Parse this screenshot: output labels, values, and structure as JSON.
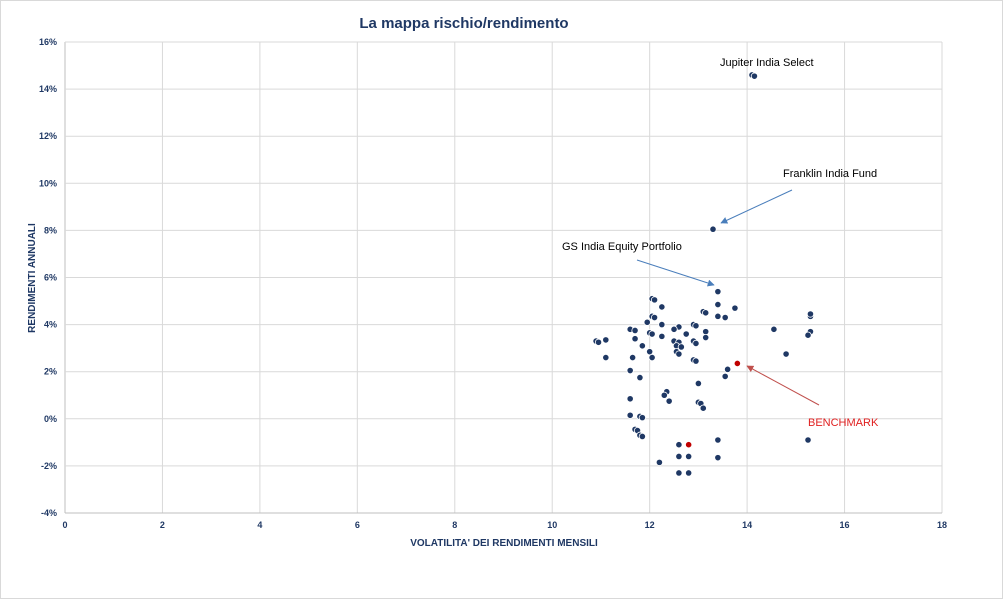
{
  "chart_data": {
    "type": "scatter",
    "title": "La mappa rischio/rendimento",
    "xlabel": "VOLATILITA' DEI RENDIMENTI MENSILI",
    "ylabel": "RENDIMENTI ANNUALI",
    "xlim": [
      0,
      18
    ],
    "ylim": [
      -4,
      16
    ],
    "x_ticks": [
      "0",
      "2",
      "4",
      "6",
      "8",
      "10",
      "12",
      "14",
      "16",
      "18"
    ],
    "y_ticks": [
      "-4%",
      "-2%",
      "0%",
      "2%",
      "4%",
      "6%",
      "8%",
      "10%",
      "12%",
      "14%",
      "16%"
    ],
    "grid": true,
    "colors": {
      "points": "#1f3864",
      "highlight": "#c00000",
      "arrow_blue": "#4a7ebb",
      "arrow_red": "#c0504d"
    },
    "points": [
      {
        "x": 14.1,
        "y": 14.6
      },
      {
        "x": 14.15,
        "y": 14.55
      },
      {
        "x": 13.3,
        "y": 8.05
      },
      {
        "x": 13.4,
        "y": 5.4
      },
      {
        "x": 12.05,
        "y": 5.1
      },
      {
        "x": 12.1,
        "y": 5.05
      },
      {
        "x": 12.25,
        "y": 4.75
      },
      {
        "x": 13.4,
        "y": 4.85
      },
      {
        "x": 13.75,
        "y": 4.7
      },
      {
        "x": 13.1,
        "y": 4.55
      },
      {
        "x": 13.15,
        "y": 4.5
      },
      {
        "x": 12.05,
        "y": 4.35
      },
      {
        "x": 12.1,
        "y": 4.3
      },
      {
        "x": 13.4,
        "y": 4.35
      },
      {
        "x": 13.55,
        "y": 4.3
      },
      {
        "x": 15.3,
        "y": 4.35
      },
      {
        "x": 15.3,
        "y": 4.45
      },
      {
        "x": 11.95,
        "y": 4.1
      },
      {
        "x": 12.25,
        "y": 4.0
      },
      {
        "x": 12.9,
        "y": 4.0
      },
      {
        "x": 12.95,
        "y": 3.95
      },
      {
        "x": 12.6,
        "y": 3.9
      },
      {
        "x": 12.5,
        "y": 3.8
      },
      {
        "x": 11.6,
        "y": 3.8
      },
      {
        "x": 11.7,
        "y": 3.75
      },
      {
        "x": 14.55,
        "y": 3.8
      },
      {
        "x": 13.15,
        "y": 3.7
      },
      {
        "x": 15.3,
        "y": 3.7
      },
      {
        "x": 15.25,
        "y": 3.55
      },
      {
        "x": 12.0,
        "y": 3.65
      },
      {
        "x": 12.05,
        "y": 3.6
      },
      {
        "x": 12.25,
        "y": 3.5
      },
      {
        "x": 12.75,
        "y": 3.6
      },
      {
        "x": 13.15,
        "y": 3.45
      },
      {
        "x": 11.7,
        "y": 3.4
      },
      {
        "x": 11.1,
        "y": 3.35
      },
      {
        "x": 10.9,
        "y": 3.3
      },
      {
        "x": 10.95,
        "y": 3.25
      },
      {
        "x": 12.5,
        "y": 3.3
      },
      {
        "x": 12.6,
        "y": 3.25
      },
      {
        "x": 12.9,
        "y": 3.3
      },
      {
        "x": 12.95,
        "y": 3.2
      },
      {
        "x": 11.85,
        "y": 3.1
      },
      {
        "x": 12.55,
        "y": 3.1
      },
      {
        "x": 12.65,
        "y": 3.05
      },
      {
        "x": 12.0,
        "y": 2.85
      },
      {
        "x": 12.55,
        "y": 2.85
      },
      {
        "x": 12.6,
        "y": 2.75
      },
      {
        "x": 14.8,
        "y": 2.75
      },
      {
        "x": 11.1,
        "y": 2.6
      },
      {
        "x": 11.65,
        "y": 2.6
      },
      {
        "x": 12.05,
        "y": 2.6
      },
      {
        "x": 12.9,
        "y": 2.5
      },
      {
        "x": 12.95,
        "y": 2.45
      },
      {
        "x": 11.6,
        "y": 2.05
      },
      {
        "x": 13.6,
        "y": 2.1
      },
      {
        "x": 11.8,
        "y": 1.75
      },
      {
        "x": 13.55,
        "y": 1.8
      },
      {
        "x": 13.0,
        "y": 1.5
      },
      {
        "x": 12.35,
        "y": 1.15
      },
      {
        "x": 12.3,
        "y": 1.0
      },
      {
        "x": 11.6,
        "y": 0.85
      },
      {
        "x": 12.4,
        "y": 0.75
      },
      {
        "x": 13.0,
        "y": 0.7
      },
      {
        "x": 13.05,
        "y": 0.65
      },
      {
        "x": 13.1,
        "y": 0.45
      },
      {
        "x": 11.6,
        "y": 0.15
      },
      {
        "x": 11.8,
        "y": 0.1
      },
      {
        "x": 11.85,
        "y": 0.05
      },
      {
        "x": 11.7,
        "y": -0.45
      },
      {
        "x": 11.75,
        "y": -0.5
      },
      {
        "x": 11.8,
        "y": -0.7
      },
      {
        "x": 11.85,
        "y": -0.75
      },
      {
        "x": 13.4,
        "y": -0.9
      },
      {
        "x": 15.25,
        "y": -0.9
      },
      {
        "x": 12.6,
        "y": -1.1
      },
      {
        "x": 12.6,
        "y": -1.6
      },
      {
        "x": 12.8,
        "y": -1.6
      },
      {
        "x": 13.4,
        "y": -1.65
      },
      {
        "x": 12.2,
        "y": -1.85
      },
      {
        "x": 12.6,
        "y": -2.3
      },
      {
        "x": 12.8,
        "y": -2.3
      }
    ],
    "highlight_points": [
      {
        "x": 13.8,
        "y": 2.35
      },
      {
        "x": 12.8,
        "y": -1.1
      }
    ],
    "annotations": [
      {
        "label": "Jupiter India Select",
        "x": 14.4,
        "y": 14.95,
        "color": "black"
      },
      {
        "label": "Franklin India Fund",
        "x": 15.05,
        "y": 21.0,
        "color": "black"
      },
      {
        "label": "GS India Equity Portfolio",
        "x": 11.0,
        "y": 14.45,
        "color": "black"
      },
      {
        "label": "BENCHMARK",
        "x": 16.0,
        "y": 17.9,
        "color": "red"
      }
    ]
  }
}
